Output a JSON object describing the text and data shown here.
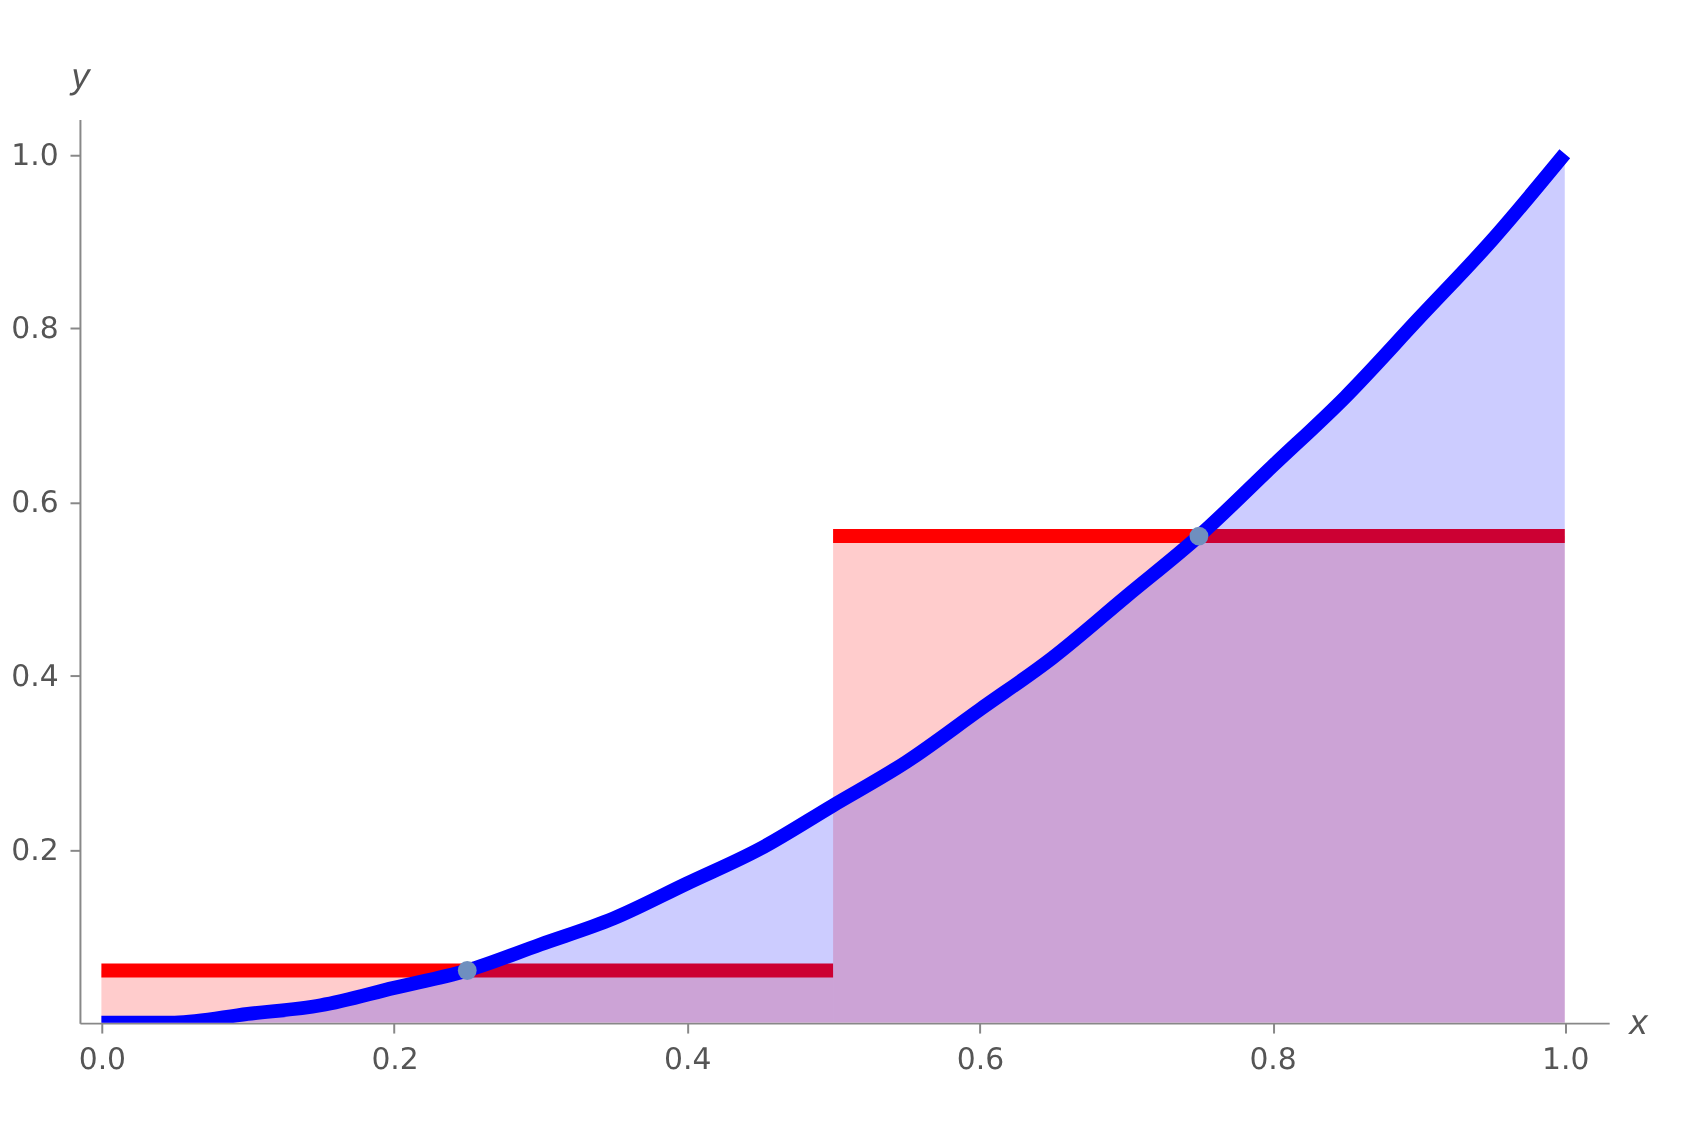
{
  "chart_data": {
    "type": "area",
    "xlabel": "x",
    "ylabel": "y",
    "xlim": [
      -0.015,
      1.03
    ],
    "ylim": [
      0,
      1.04
    ],
    "xticks": [
      {
        "value": 0,
        "label": "0.0"
      },
      0.2,
      0.4,
      0.6,
      0.8,
      {
        "value": 1,
        "label": "1.0"
      }
    ],
    "yticks": [
      0.2,
      0.4,
      0.6,
      0.8,
      {
        "value": 1,
        "label": "1.0"
      }
    ],
    "grid": false,
    "series": [
      {
        "color": "#ff0000",
        "x": [
          0,
          0.5
        ],
        "values": [
          0.06,
          0.06
        ]
      },
      {
        "color": "#ff0000",
        "x": [
          0.5,
          1.0
        ],
        "values": [
          0.56,
          0.56
        ]
      },
      {
        "color": "#0000ff",
        "x": [
          0,
          0.05,
          0.1,
          0.15,
          0.2,
          0.25,
          0.3,
          0.35,
          0.4,
          0.45,
          0.5,
          0.55,
          0.6,
          0.65,
          0.7,
          0.75,
          0.8,
          0.85,
          0.9,
          0.95,
          1.0
        ],
        "values": [
          0,
          0,
          0.01,
          0.02,
          0.04,
          0.06,
          0.09,
          0.12,
          0.16,
          0.2,
          0.25,
          0.3,
          0.36,
          0.42,
          0.49,
          0.56,
          0.64,
          0.72,
          0.81,
          0.9,
          1.0
        ]
      },
      {
        "type": "scatter",
        "color": "#6f8fbf",
        "x": [
          0.25,
          0.75
        ],
        "values": [
          0.06,
          0.56
        ]
      }
    ]
  }
}
